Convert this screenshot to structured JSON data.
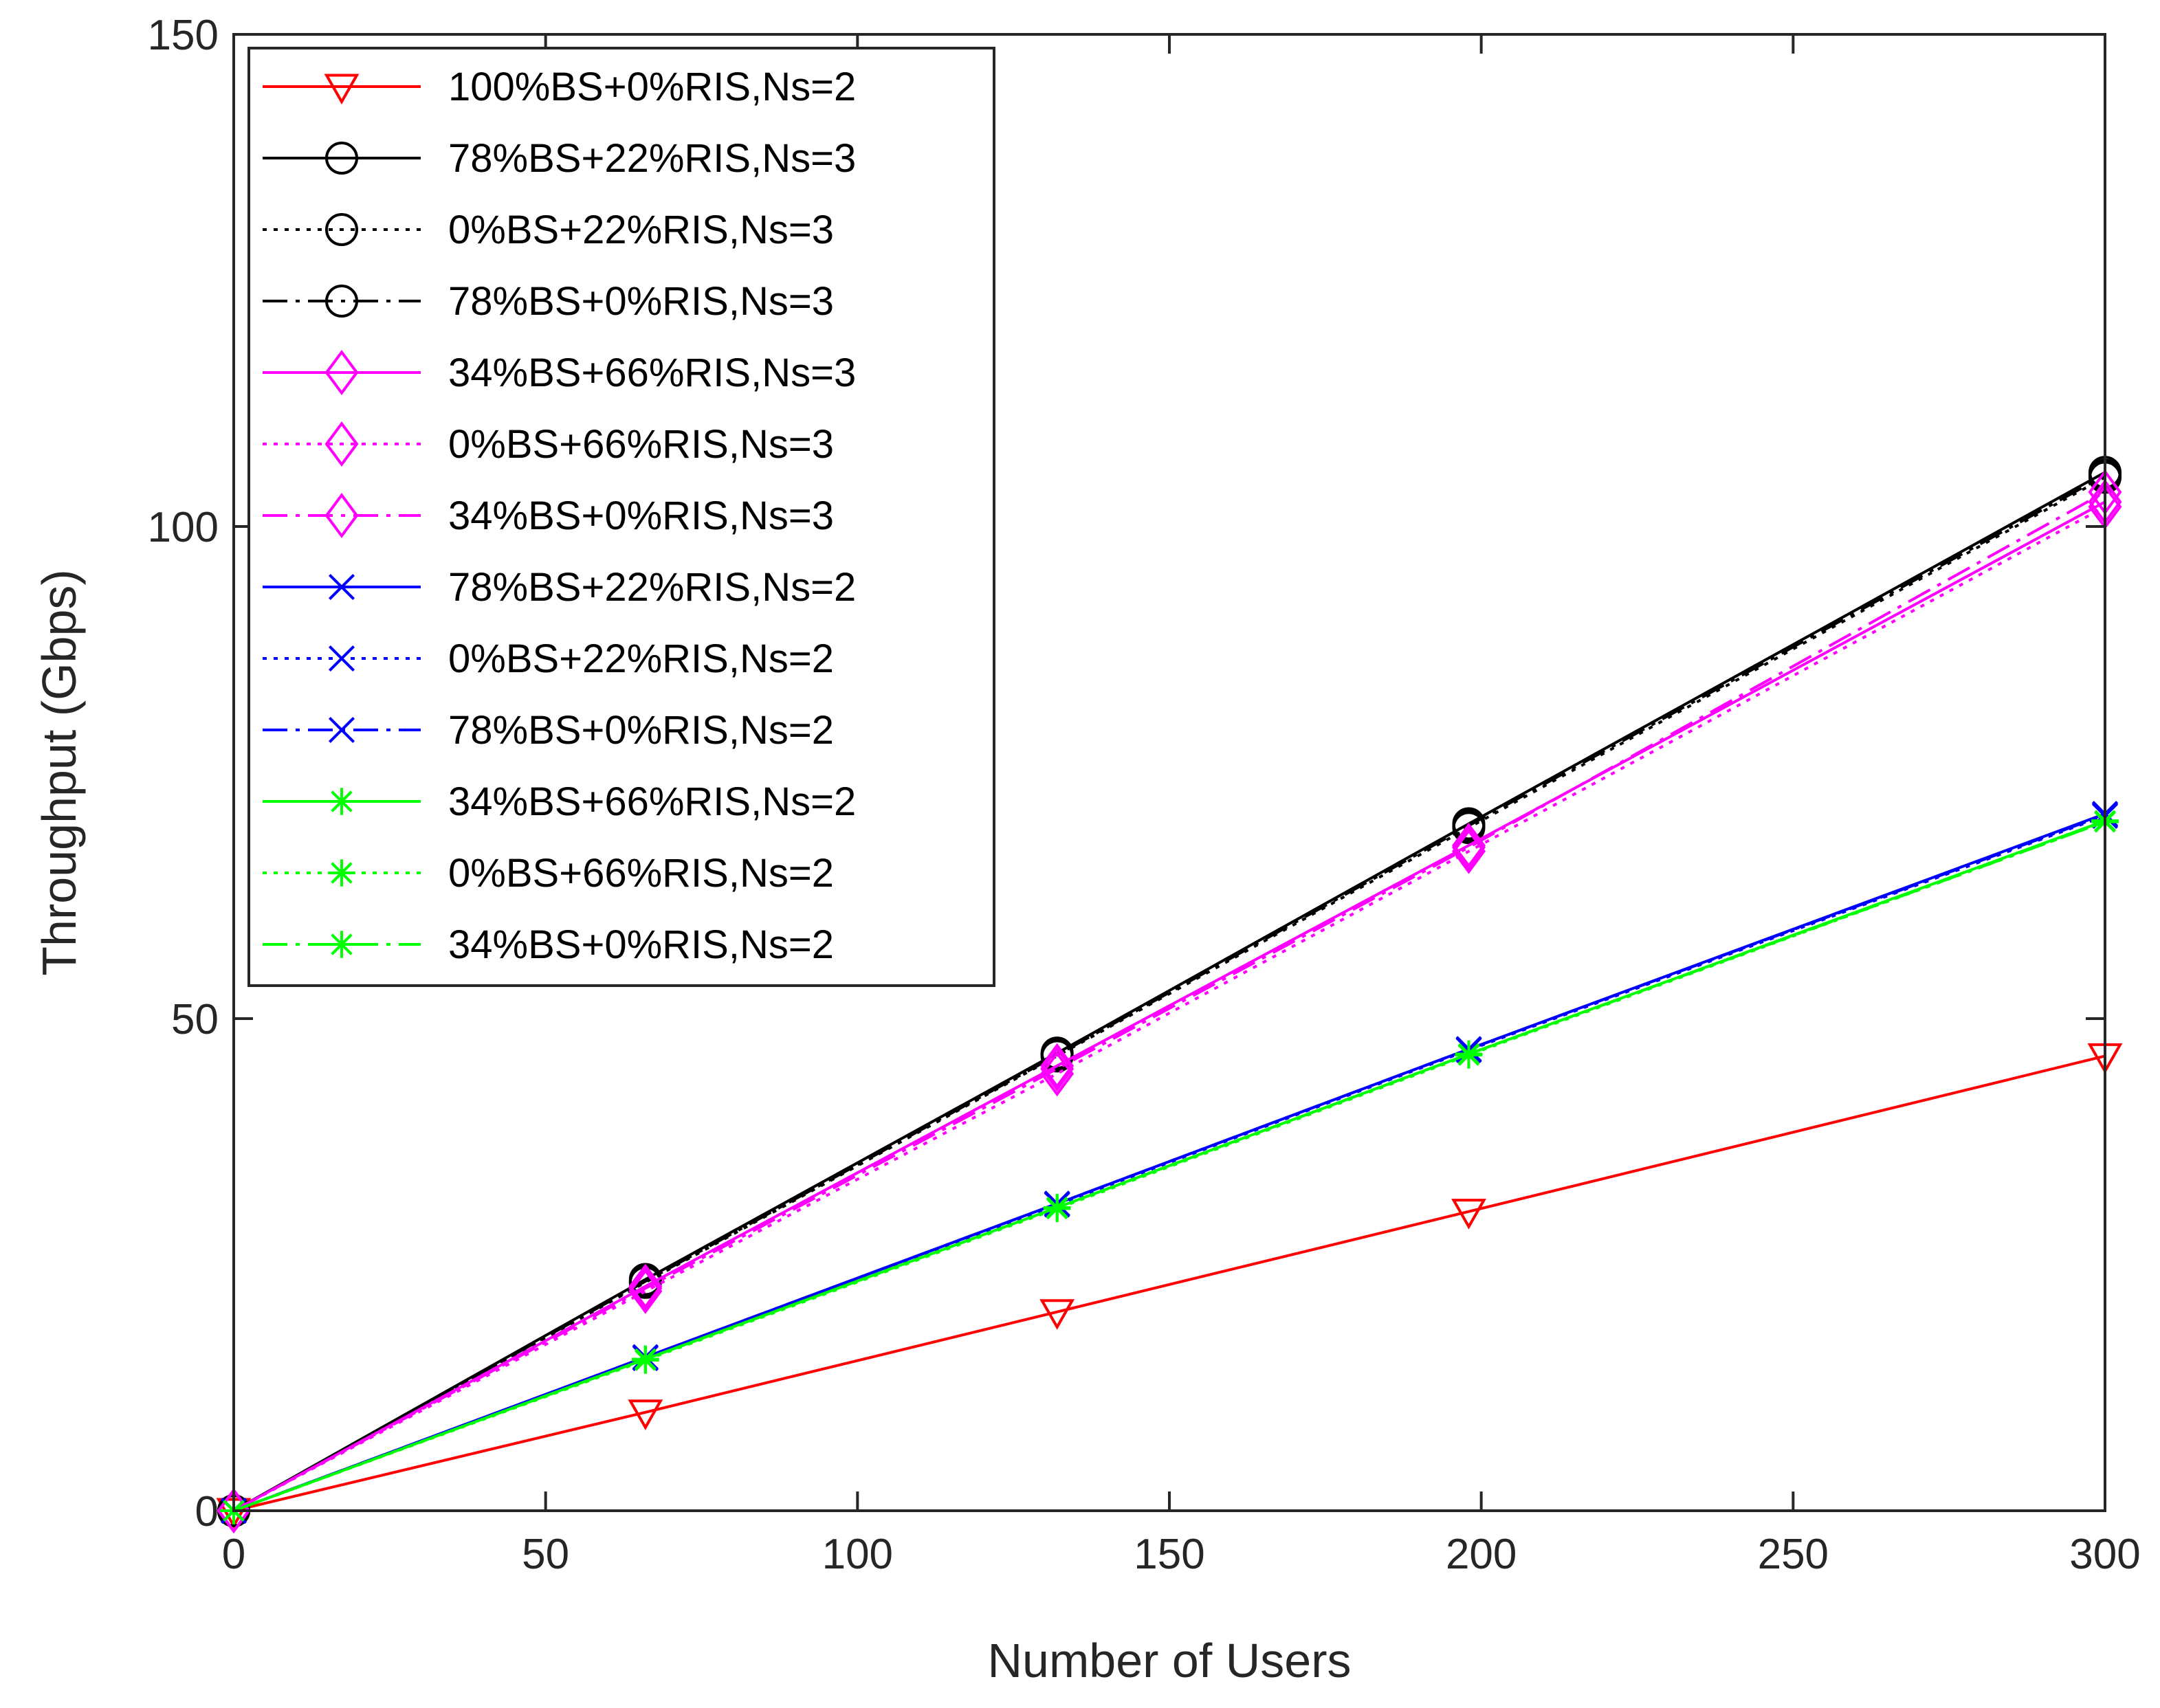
{
  "chart_data": {
    "type": "line",
    "title": "",
    "xlabel": "Number of Users",
    "ylabel": "Throughput (Gbps)",
    "xlim": [
      0,
      300
    ],
    "ylim": [
      0,
      150
    ],
    "xticks": [
      "0",
      "50",
      "100",
      "150",
      "200",
      "250",
      "300"
    ],
    "yticks": [
      "0",
      "50",
      "100",
      "150"
    ],
    "grid": false,
    "legend_position": "top-left",
    "x": [
      0,
      66,
      132,
      198,
      300
    ],
    "series": [
      {
        "name": "100%BS+0%RIS,Ns=2",
        "color": "#ff0000",
        "line": "solid",
        "marker": "triangle-down",
        "values": [
          0,
          10,
          20.2,
          30.4,
          46.2
        ]
      },
      {
        "name": "78%BS+22%RIS,Ns=3",
        "color": "#000000",
        "line": "solid",
        "marker": "circle",
        "values": [
          0,
          23.5,
          46.5,
          69.8,
          105.5
        ]
      },
      {
        "name": "0%BS+22%RIS,Ns=3",
        "color": "#000000",
        "line": "dotted",
        "marker": "circle",
        "values": [
          0,
          23.2,
          46.2,
          69.4,
          105.0
        ]
      },
      {
        "name": "78%BS+0%RIS,Ns=3",
        "color": "#000000",
        "line": "dashdot",
        "marker": "circle",
        "values": [
          0,
          23.3,
          46.3,
          69.6,
          105.2
        ]
      },
      {
        "name": "34%BS+66%RIS,Ns=3",
        "color": "#ff00ff",
        "line": "solid",
        "marker": "diamond",
        "values": [
          0,
          22.8,
          45.2,
          67.6,
          102.5
        ]
      },
      {
        "name": "0%BS+66%RIS,Ns=3",
        "color": "#ff00ff",
        "line": "dotted",
        "marker": "diamond",
        "values": [
          0,
          22.3,
          44.4,
          67.0,
          102.0
        ]
      },
      {
        "name": "34%BS+0%RIS,Ns=3",
        "color": "#ff00ff",
        "line": "dashdot",
        "marker": "diamond",
        "values": [
          0,
          22.6,
          44.9,
          67.4,
          103.5
        ]
      },
      {
        "name": "78%BS+22%RIS,Ns=2",
        "color": "#0000ff",
        "line": "solid",
        "marker": "x",
        "values": [
          0,
          15.6,
          31.2,
          46.9,
          70.8
        ]
      },
      {
        "name": "0%BS+22%RIS,Ns=2",
        "color": "#0000ff",
        "line": "dotted",
        "marker": "x",
        "values": [
          0,
          15.5,
          31.1,
          46.8,
          70.6
        ]
      },
      {
        "name": "78%BS+0%RIS,Ns=2",
        "color": "#0000ff",
        "line": "dashdot",
        "marker": "x",
        "values": [
          0,
          15.6,
          31.2,
          46.9,
          70.7
        ]
      },
      {
        "name": "34%BS+66%RIS,Ns=2",
        "color": "#00ff00",
        "line": "solid",
        "marker": "asterisk",
        "values": [
          0,
          15.4,
          30.8,
          46.4,
          70.1
        ]
      },
      {
        "name": "0%BS+66%RIS,Ns=2",
        "color": "#00ff00",
        "line": "dotted",
        "marker": "asterisk",
        "values": [
          0,
          15.3,
          30.7,
          46.3,
          70.0
        ]
      },
      {
        "name": "34%BS+0%RIS,Ns=2",
        "color": "#00ff00",
        "line": "dashdot",
        "marker": "asterisk",
        "values": [
          0,
          15.4,
          30.8,
          46.4,
          70.0
        ]
      }
    ]
  }
}
